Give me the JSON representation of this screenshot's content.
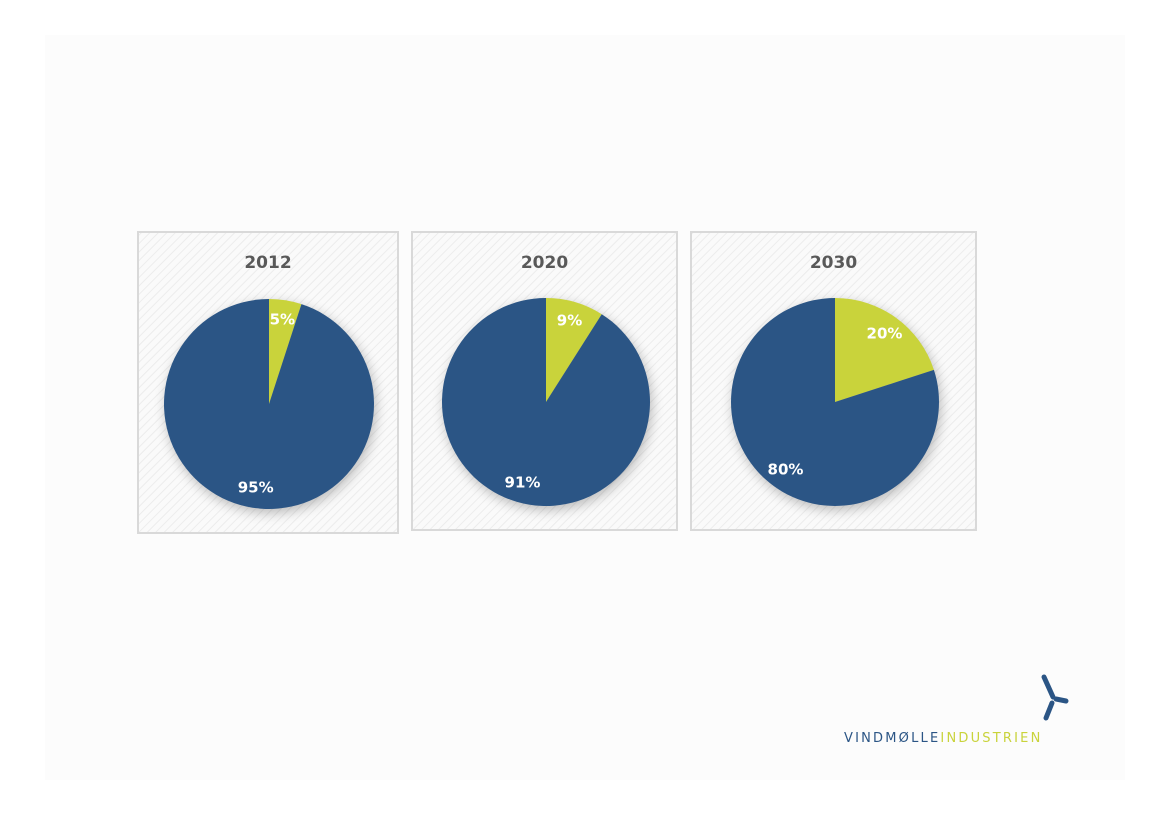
{
  "chart_data": [
    {
      "type": "pie",
      "title": "2012",
      "values": [
        5,
        95
      ],
      "value_labels": [
        "5%",
        "95%"
      ],
      "colors": [
        "#c9d33b",
        "#2b5585"
      ]
    },
    {
      "type": "pie",
      "title": "2020",
      "values": [
        9,
        91
      ],
      "value_labels": [
        "9%",
        "91%"
      ],
      "colors": [
        "#c9d33b",
        "#2b5585"
      ]
    },
    {
      "type": "pie",
      "title": "2030",
      "values": [
        20,
        80
      ],
      "value_labels": [
        "20%",
        "80%"
      ],
      "colors": [
        "#c9d33b",
        "#2b5585"
      ]
    }
  ],
  "logo": {
    "first": "VINDMØLLE",
    "second": "INDUSTRIEN"
  }
}
